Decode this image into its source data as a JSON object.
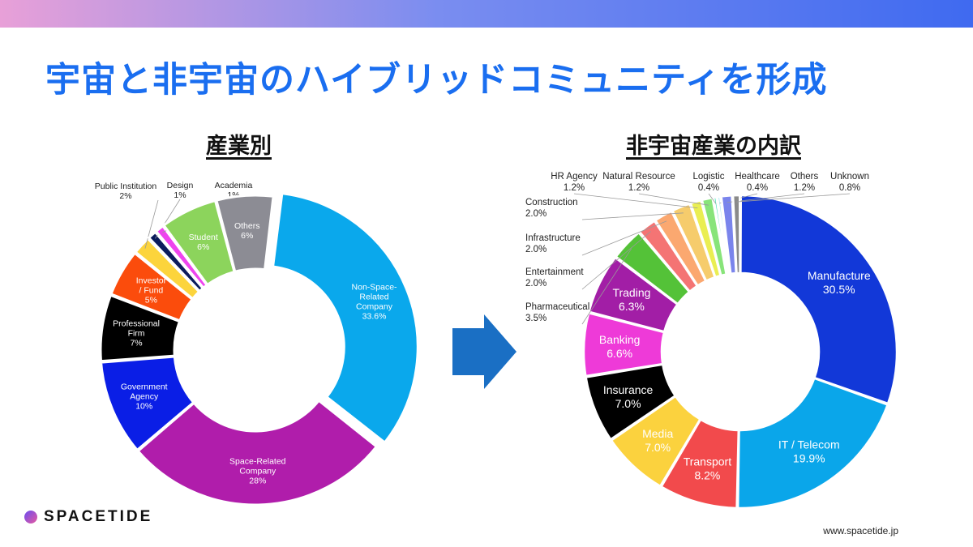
{
  "headline": "宇宙と非宇宙のハイブリッドコミュニティを形成",
  "footer": {
    "url": "www.spacetide.jp",
    "logo_text": "SPACETIDE"
  },
  "chart_data": [
    {
      "type": "pie",
      "variant": "donut",
      "title": "産業別",
      "slices": [
        {
          "label": "Non-Space-\nRelated\nCompany",
          "pct": "33.6%",
          "value": 33.6,
          "color": "#0aa8ec",
          "explode": true
        },
        {
          "label": "Space-Related\nCompany",
          "pct": "28%",
          "value": 28,
          "color": "#b01dab"
        },
        {
          "label": "Government\nAgency",
          "pct": "10%",
          "value": 10,
          "color": "#0a1ee6"
        },
        {
          "label": "Professional\nFirm",
          "pct": "7%",
          "value": 7,
          "color": "#000000"
        },
        {
          "label": "Investor\n/ Fund",
          "pct": "5%",
          "value": 5,
          "color": "#fb4c0c"
        },
        {
          "label": "Public Institution",
          "pct": "2%",
          "value": 2,
          "color": "#fcd43c"
        },
        {
          "label": "Design",
          "pct": "1%",
          "value": 1,
          "color": "#0c1c5c"
        },
        {
          "label": "Academia",
          "pct": "1%",
          "value": 1,
          "color": "#ee44ee"
        },
        {
          "label": "Student",
          "pct": "6%",
          "value": 6,
          "color": "#8cd45c"
        },
        {
          "label": "Others",
          "pct": "6%",
          "value": 6,
          "color": "#8c8c94"
        }
      ]
    },
    {
      "type": "pie",
      "variant": "donut",
      "title": "非宇宙産業の内訳",
      "slices": [
        {
          "label": "Manufacture",
          "pct": "30.5%",
          "value": 30.5,
          "color": "#1238d8"
        },
        {
          "label": "IT / Telecom",
          "pct": "19.9%",
          "value": 19.9,
          "color": "#0aa6ea"
        },
        {
          "label": "Transport",
          "pct": "8.2%",
          "value": 8.2,
          "color": "#f24a4c"
        },
        {
          "label": "Media",
          "pct": "7.0%",
          "value": 7.0,
          "color": "#fbd23e"
        },
        {
          "label": "Insurance",
          "pct": "7.0%",
          "value": 7.0,
          "color": "#000000"
        },
        {
          "label": "Banking",
          "pct": "6.6%",
          "value": 6.6,
          "color": "#ee3ad8"
        },
        {
          "label": "Trading",
          "pct": "6.3%",
          "value": 6.3,
          "color": "#a21ea6"
        },
        {
          "label": "Pharmaceutical",
          "pct": "3.5%",
          "value": 3.5,
          "color": "#54c238"
        },
        {
          "label": "Entertainment",
          "pct": "2.0%",
          "value": 2.0,
          "color": "#f47474"
        },
        {
          "label": "Infrastructure",
          "pct": "2.0%",
          "value": 2.0,
          "color": "#fba870"
        },
        {
          "label": "Construction",
          "pct": "2.0%",
          "value": 2.0,
          "color": "#f6cc6c"
        },
        {
          "label": "HR Agency",
          "pct": "1.2%",
          "value": 1.2,
          "color": "#eaee52"
        },
        {
          "label": "Natural Resource",
          "pct": "1.2%",
          "value": 1.2,
          "color": "#88e47a"
        },
        {
          "label": "Logistic",
          "pct": "0.4%",
          "value": 0.4,
          "color": "#3ce0b0"
        },
        {
          "label": "Healthcare",
          "pct": "0.4%",
          "value": 0.4,
          "color": "#a6e8f4"
        },
        {
          "label": "Others",
          "pct": "1.2%",
          "value": 1.2,
          "color": "#7a84ec"
        },
        {
          "label": "Unknown",
          "pct": "0.8%",
          "value": 0.8,
          "color": "#8a8a8a"
        }
      ]
    }
  ],
  "arrow_color": "#1a6fc4"
}
